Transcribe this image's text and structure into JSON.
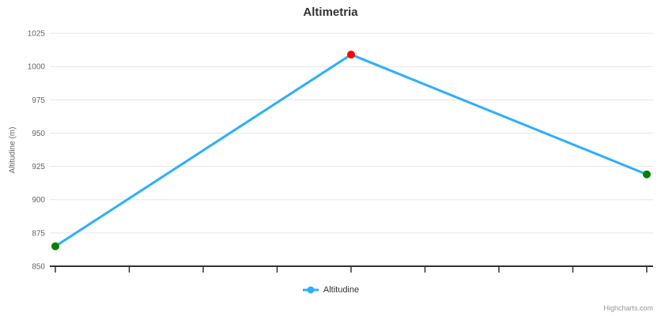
{
  "chart_data": {
    "type": "line",
    "title": "Altimetria",
    "ylabel": "Altitudine (m)",
    "xlabel": "",
    "y_ticks": [
      850,
      875,
      900,
      925,
      950,
      975,
      1000,
      1025
    ],
    "ylim": [
      850,
      1031
    ],
    "xlim": [
      0,
      8
    ],
    "x_tick_count": 9,
    "x_tick_labels": [],
    "grid": true,
    "legend_position": "bottom-center",
    "series": [
      {
        "name": "Altitudine",
        "color": "#2caffe",
        "line_width": 3,
        "marker_radius": 5,
        "points": [
          {
            "x": 0,
            "y": 865,
            "marker_color": "#008000"
          },
          {
            "x": 4,
            "y": 1009,
            "marker_color": "#ff0000"
          },
          {
            "x": 8,
            "y": 919,
            "marker_color": "#008000"
          }
        ]
      }
    ],
    "credits": "Highcharts.com"
  },
  "colors": {
    "background": "#ffffff",
    "grid_line": "#e6e6e6",
    "axis_line": "#333333",
    "tick_mark": "#333333",
    "title_text": "#333333",
    "axis_label_text": "#666666",
    "axis_title_text": "#666666",
    "legend_text": "#333333",
    "credits_text": "#999999"
  }
}
